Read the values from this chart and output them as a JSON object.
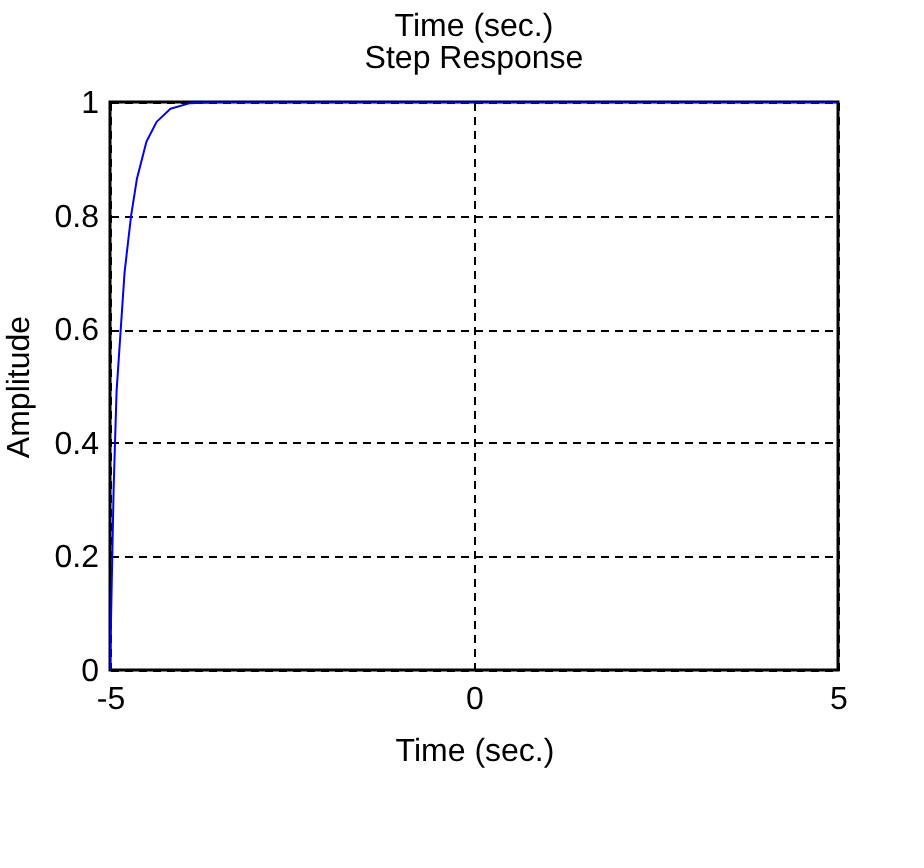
{
  "chart_data": {
    "type": "line",
    "title": "Time (sec.)",
    "subtitle": "Step Response",
    "xlabel": "Time (sec.)",
    "ylabel": "Amplitude",
    "series": [
      {
        "color": "#0000ff",
        "x": [
          -5,
          -4.95,
          -4.91,
          -4.8,
          -4.71,
          -4.63,
          -4.5,
          -4.36,
          -4.17,
          -3.9,
          -3.5,
          5
        ],
        "values": [
          0,
          0.32,
          0.49,
          0.7,
          0.8,
          0.865,
          0.93,
          0.965,
          0.988,
          0.998,
          1,
          1
        ]
      }
    ],
    "xlim": [
      -5,
      5
    ],
    "xticks": [
      -5,
      0,
      5
    ],
    "ylim": [
      0,
      1
    ],
    "yticks": [
      {
        "value": 0,
        "label": "0"
      },
      0.2,
      0.4,
      0.6,
      0.8,
      {
        "value": 1,
        "label": "1"
      }
    ],
    "grid": true,
    "marker": "none",
    "line_style": "solid"
  }
}
